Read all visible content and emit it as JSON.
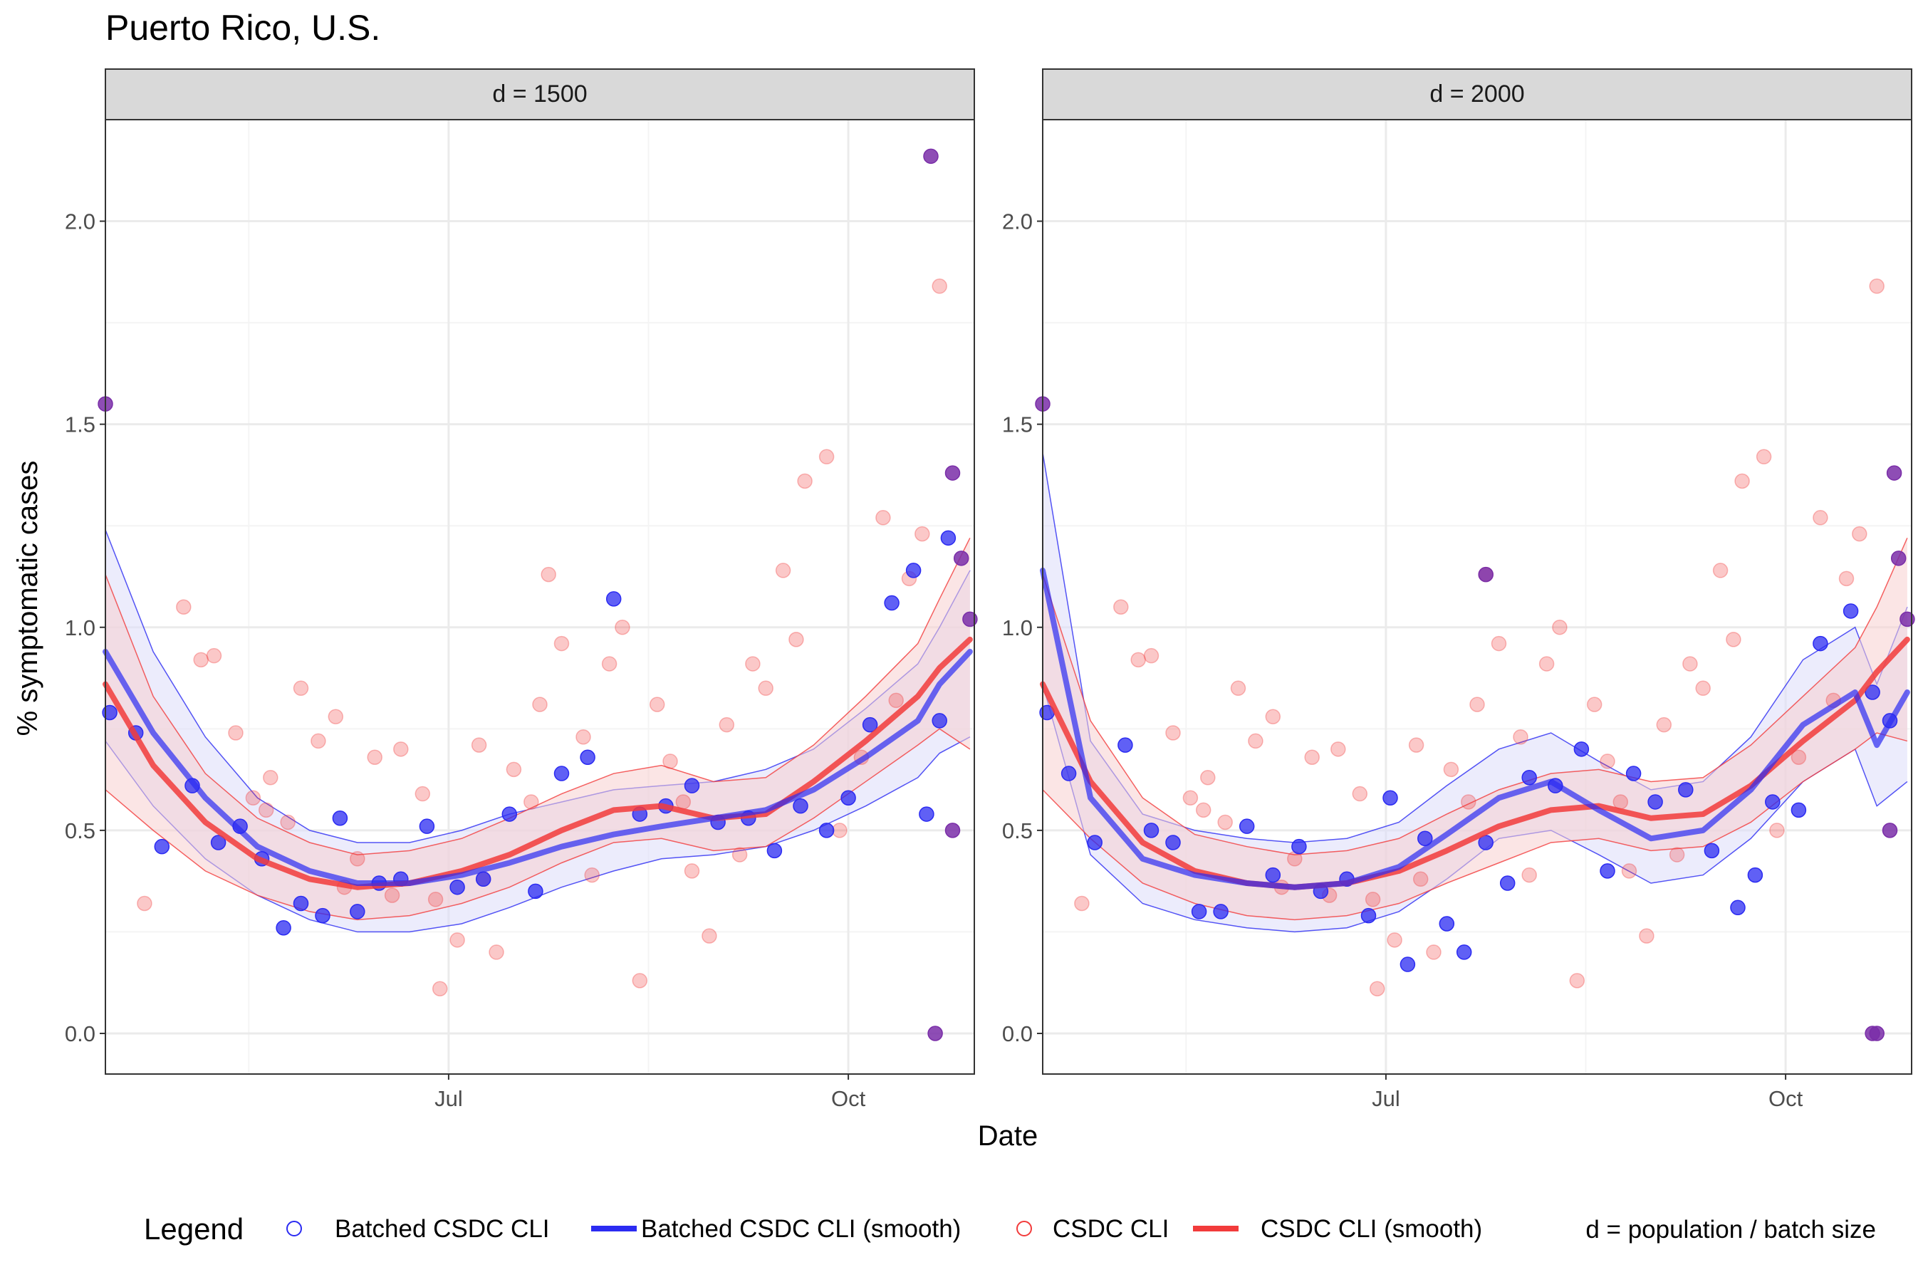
{
  "title": "Puerto Rico, U.S.",
  "colors": {
    "batched": "#2b2bf2",
    "csdc": "#f23b3b",
    "overlap": "#7a2ea8",
    "batched_band": "#dcdcfa",
    "csdc_band": "#f8d0d0",
    "strip_fill": "#d9d9d9",
    "grid_major": "#ebebeb",
    "grid_minor": "#f4f4f4"
  },
  "legend": {
    "title": "Legend",
    "items": [
      {
        "label": "Batched CSDC CLI",
        "kind": "point",
        "color": "#2b2bf2"
      },
      {
        "label": "Batched CSDC CLI (smooth)",
        "kind": "line",
        "color": "#2b2bf2"
      },
      {
        "label": "CSDC CLI",
        "kind": "point",
        "color": "#f23b3b"
      },
      {
        "label": "CSDC CLI (smooth)",
        "kind": "line",
        "color": "#f23b3b"
      }
    ],
    "note": "d = population / batch size"
  },
  "chart_data": {
    "type": "scatter",
    "xlabel": "Date",
    "ylabel": "% symptomatic cases",
    "xlim": [
      "2020-04-13",
      "2020-10-30"
    ],
    "ylim": [
      -0.1,
      2.25
    ],
    "x_ticks": [
      {
        "date": "2020-07-01",
        "label": "Jul"
      },
      {
        "date": "2020-10-01",
        "label": "Oct"
      }
    ],
    "y_ticks": [
      0.0,
      0.5,
      1.0,
      1.5,
      2.0
    ],
    "y_tick_labels": [
      "0.0",
      "0.5",
      "1.0",
      "1.5",
      "2.0"
    ],
    "grid": true,
    "legend_position": "bottom",
    "csdc_dates": [
      "2020-04-22",
      "2020-05-01",
      "2020-05-05",
      "2020-05-08",
      "2020-05-13",
      "2020-05-17",
      "2020-05-20",
      "2020-05-21",
      "2020-05-25",
      "2020-05-28",
      "2020-06-01",
      "2020-06-05",
      "2020-06-07",
      "2020-06-10",
      "2020-06-14",
      "2020-06-18",
      "2020-06-20",
      "2020-06-25",
      "2020-06-28",
      "2020-06-29",
      "2020-07-03",
      "2020-07-08",
      "2020-07-09",
      "2020-07-12",
      "2020-07-16",
      "2020-07-20",
      "2020-07-22",
      "2020-07-24",
      "2020-07-27",
      "2020-08-01",
      "2020-08-03",
      "2020-08-07",
      "2020-08-10",
      "2020-08-14",
      "2020-08-18",
      "2020-08-21",
      "2020-08-24",
      "2020-08-26",
      "2020-08-30",
      "2020-09-03",
      "2020-09-06",
      "2020-09-09",
      "2020-09-12",
      "2020-09-16",
      "2020-09-19",
      "2020-09-21",
      "2020-09-26",
      "2020-09-29",
      "2020-10-04",
      "2020-10-09",
      "2020-10-12",
      "2020-10-15",
      "2020-10-18",
      "2020-10-22"
    ],
    "csdc_values": [
      0.32,
      1.05,
      0.92,
      0.93,
      0.74,
      0.58,
      0.55,
      0.63,
      0.52,
      0.85,
      0.72,
      0.78,
      0.36,
      0.43,
      0.68,
      0.34,
      0.7,
      0.59,
      0.33,
      0.11,
      0.23,
      0.71,
      0.38,
      0.2,
      0.65,
      0.57,
      0.81,
      1.13,
      0.96,
      0.73,
      0.39,
      0.91,
      1.0,
      0.13,
      0.81,
      0.67,
      0.57,
      0.4,
      0.24,
      0.76,
      0.44,
      0.91,
      0.85,
      1.14,
      0.97,
      1.36,
      1.42,
      0.5,
      0.68,
      1.27,
      0.82,
      1.12,
      1.23,
      1.84
    ],
    "panels": [
      {
        "strip": "d = 1500",
        "batched_dates": [
          "2020-04-14",
          "2020-04-20",
          "2020-04-26",
          "2020-05-03",
          "2020-05-09",
          "2020-05-14",
          "2020-05-19",
          "2020-05-24",
          "2020-05-28",
          "2020-06-02",
          "2020-06-06",
          "2020-06-10",
          "2020-06-15",
          "2020-06-20",
          "2020-06-26",
          "2020-07-03",
          "2020-07-09",
          "2020-07-15",
          "2020-07-21",
          "2020-07-27",
          "2020-08-02",
          "2020-08-08",
          "2020-08-14",
          "2020-08-20",
          "2020-08-26",
          "2020-09-01",
          "2020-09-08",
          "2020-09-14",
          "2020-09-20",
          "2020-09-26",
          "2020-10-01",
          "2020-10-06",
          "2020-10-11",
          "2020-10-16",
          "2020-10-19",
          "2020-10-22",
          "2020-10-24"
        ],
        "batched_values": [
          0.79,
          0.74,
          0.46,
          0.61,
          0.47,
          0.51,
          0.43,
          0.26,
          0.32,
          0.29,
          0.53,
          0.3,
          0.37,
          0.38,
          0.51,
          0.36,
          0.38,
          0.54,
          0.35,
          0.64,
          0.68,
          1.07,
          0.54,
          0.56,
          0.61,
          0.52,
          0.53,
          0.45,
          0.56,
          0.5,
          0.58,
          0.76,
          1.06,
          1.14,
          0.54,
          0.77,
          1.22
        ],
        "batched_smooth": [
          0.94,
          0.74,
          0.58,
          0.46,
          0.4,
          0.37,
          0.37,
          0.39,
          0.42,
          0.46,
          0.49,
          0.51,
          0.53,
          0.55,
          0.6,
          0.68,
          0.77,
          0.86,
          0.94
        ],
        "batched_lower": [
          0.72,
          0.56,
          0.43,
          0.34,
          0.28,
          0.25,
          0.25,
          0.27,
          0.31,
          0.36,
          0.4,
          0.43,
          0.44,
          0.46,
          0.5,
          0.56,
          0.63,
          0.69,
          0.73
        ],
        "batched_upper": [
          1.24,
          0.94,
          0.73,
          0.58,
          0.5,
          0.47,
          0.47,
          0.5,
          0.54,
          0.57,
          0.6,
          0.61,
          0.62,
          0.65,
          0.7,
          0.8,
          0.91,
          1.0,
          1.14
        ],
        "csdc_smooth": [
          0.86,
          0.66,
          0.52,
          0.43,
          0.38,
          0.36,
          0.37,
          0.4,
          0.44,
          0.5,
          0.55,
          0.56,
          0.53,
          0.54,
          0.62,
          0.72,
          0.83,
          0.9,
          0.97
        ],
        "csdc_lower": [
          0.6,
          0.5,
          0.4,
          0.34,
          0.3,
          0.28,
          0.29,
          0.32,
          0.36,
          0.42,
          0.47,
          0.48,
          0.45,
          0.46,
          0.53,
          0.62,
          0.71,
          0.75,
          0.7
        ],
        "csdc_upper": [
          1.13,
          0.83,
          0.64,
          0.53,
          0.47,
          0.44,
          0.45,
          0.48,
          0.53,
          0.59,
          0.64,
          0.66,
          0.62,
          0.63,
          0.71,
          0.83,
          0.96,
          1.07,
          1.22
        ],
        "overlap_dates": [
          "2020-04-13",
          "2020-10-20",
          "2020-10-21",
          "2020-10-25",
          "2020-10-25",
          "2020-10-27",
          "2020-10-29"
        ],
        "overlap_values": [
          1.55,
          2.16,
          0.0,
          0.5,
          1.38,
          1.17,
          1.02
        ]
      },
      {
        "strip": "d = 2000",
        "batched_dates": [
          "2020-04-14",
          "2020-04-19",
          "2020-04-25",
          "2020-05-02",
          "2020-05-08",
          "2020-05-13",
          "2020-05-19",
          "2020-05-24",
          "2020-05-30",
          "2020-06-05",
          "2020-06-11",
          "2020-06-16",
          "2020-06-22",
          "2020-06-27",
          "2020-07-02",
          "2020-07-06",
          "2020-07-10",
          "2020-07-15",
          "2020-07-19",
          "2020-07-24",
          "2020-07-29",
          "2020-08-03",
          "2020-08-09",
          "2020-08-15",
          "2020-08-21",
          "2020-08-27",
          "2020-09-01",
          "2020-09-08",
          "2020-09-14",
          "2020-09-20",
          "2020-09-24",
          "2020-09-28",
          "2020-10-04",
          "2020-10-09",
          "2020-10-16",
          "2020-10-21",
          "2020-10-25"
        ],
        "batched_values": [
          0.79,
          0.64,
          0.47,
          0.71,
          0.5,
          0.47,
          0.3,
          0.3,
          0.51,
          0.39,
          0.46,
          0.35,
          0.38,
          0.29,
          0.58,
          0.17,
          0.48,
          0.27,
          0.2,
          0.47,
          0.37,
          0.63,
          0.61,
          0.7,
          0.4,
          0.64,
          0.57,
          0.6,
          0.45,
          0.31,
          0.39,
          0.57,
          0.55,
          0.96,
          1.04,
          0.84,
          0.77
        ],
        "batched_smooth": [
          1.14,
          0.58,
          0.43,
          0.39,
          0.37,
          0.36,
          0.37,
          0.41,
          0.49,
          0.58,
          0.62,
          0.55,
          0.48,
          0.5,
          0.6,
          0.76,
          0.84,
          0.71,
          0.84
        ],
        "batched_lower": [
          0.86,
          0.44,
          0.32,
          0.28,
          0.26,
          0.25,
          0.26,
          0.3,
          0.38,
          0.48,
          0.5,
          0.44,
          0.37,
          0.39,
          0.48,
          0.62,
          0.7,
          0.56,
          0.62
        ],
        "batched_upper": [
          1.43,
          0.72,
          0.54,
          0.5,
          0.48,
          0.47,
          0.48,
          0.52,
          0.61,
          0.7,
          0.74,
          0.67,
          0.6,
          0.62,
          0.73,
          0.92,
          1.0,
          0.86,
          1.05
        ],
        "csdc_smooth": [
          0.86,
          0.62,
          0.47,
          0.4,
          0.37,
          0.36,
          0.37,
          0.4,
          0.45,
          0.51,
          0.55,
          0.56,
          0.53,
          0.54,
          0.61,
          0.72,
          0.82,
          0.89,
          0.97
        ],
        "csdc_lower": [
          0.6,
          0.48,
          0.37,
          0.32,
          0.29,
          0.28,
          0.29,
          0.32,
          0.37,
          0.42,
          0.47,
          0.48,
          0.45,
          0.46,
          0.52,
          0.62,
          0.7,
          0.74,
          0.72
        ],
        "csdc_upper": [
          1.13,
          0.77,
          0.58,
          0.49,
          0.46,
          0.44,
          0.45,
          0.48,
          0.54,
          0.6,
          0.64,
          0.65,
          0.62,
          0.63,
          0.71,
          0.83,
          0.95,
          1.05,
          1.22
        ],
        "overlap_dates": [
          "2020-04-13",
          "2020-07-24",
          "2020-10-21",
          "2020-10-22",
          "2020-10-25",
          "2020-10-26",
          "2020-10-27",
          "2020-10-29"
        ],
        "overlap_values": [
          1.55,
          1.13,
          0.0,
          0.0,
          0.5,
          1.38,
          1.17,
          1.02
        ]
      }
    ],
    "smooth_dates": [
      "2020-04-13",
      "2020-04-24",
      "2020-05-06",
      "2020-05-18",
      "2020-05-30",
      "2020-06-10",
      "2020-06-22",
      "2020-07-04",
      "2020-07-15",
      "2020-07-27",
      "2020-08-08",
      "2020-08-19",
      "2020-08-31",
      "2020-09-12",
      "2020-09-23",
      "2020-10-05",
      "2020-10-17",
      "2020-10-22",
      "2020-10-29"
    ]
  }
}
